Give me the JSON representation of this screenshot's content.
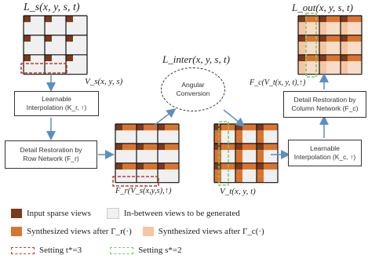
{
  "colors": {
    "dark": "#7a3a1e",
    "light_cell": "#f0f0f0",
    "orange": "#d9742e",
    "peach": "#f5c6a2",
    "red_dash": "#c0392b",
    "green_dash": "#7fc76a",
    "arrow": "#5b8fc2"
  },
  "labels": {
    "top_left": "L_s(x, y, s, t)",
    "top_right": "L_out(x, y, s, t)",
    "middle": "L_inter(x, y, s, t)",
    "v_s": "V_s(x, y, s)",
    "bottom_left": "F_r(V_s(x,y,s),↑)",
    "v_t": "V_t(x, y, t)",
    "top_right_small": "F_c(V_t(x, y, t),↑)"
  },
  "boxes": {
    "interp_left": [
      "Learnable",
      "Interpolation (K_r, ↑)"
    ],
    "detail_row": [
      "Detail Restoration by",
      "Row Network (F_r)"
    ],
    "angular": [
      "Angular",
      "Conversion"
    ],
    "detail_col": [
      "Detail Restoration by",
      "Column Network (F_c)"
    ],
    "interp_right": [
      "Learnable",
      "Interpolation (K_c, ↑)"
    ]
  },
  "legend": {
    "input_sparse": "Input sparse views",
    "in_between": "In-between views to be generated",
    "synth_fr": "Synthesized views after Γ_r(·)",
    "synth_fc": "Synthesized views after Γ_c(·)",
    "setting_t": "Setting t*=3",
    "setting_s": "Setting s*=2"
  }
}
